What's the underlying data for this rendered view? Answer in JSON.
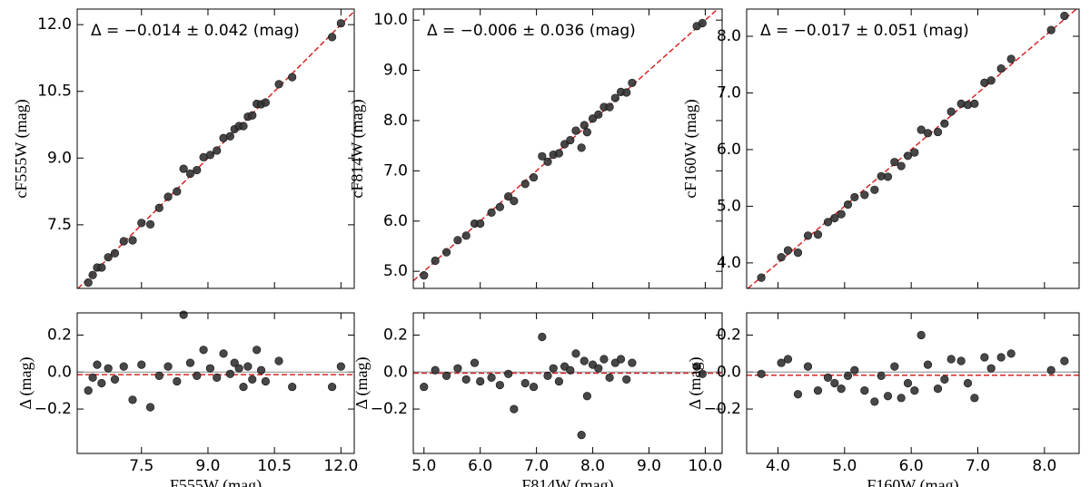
{
  "chart_data": [
    {
      "type": "scatter",
      "y_label": "cF555W (mag)",
      "annotation": "Δ = −0.014 ± 0.042 (mag)",
      "color": "#333333",
      "identity_line": true,
      "x": [
        6.3,
        6.4,
        6.5,
        6.6,
        6.75,
        6.9,
        7.1,
        7.3,
        7.5,
        7.7,
        7.9,
        8.1,
        8.3,
        8.45,
        8.6,
        8.75,
        8.9,
        9.05,
        9.2,
        9.35,
        9.5,
        9.6,
        9.7,
        9.8,
        9.9,
        10.0,
        10.1,
        10.2,
        10.3,
        10.6,
        10.9,
        11.8,
        12.0
      ],
      "y": [
        6.2,
        6.37,
        6.54,
        6.54,
        6.77,
        6.86,
        7.13,
        7.15,
        7.54,
        7.51,
        7.88,
        8.13,
        8.25,
        8.76,
        8.65,
        8.73,
        9.02,
        9.07,
        9.17,
        9.45,
        9.49,
        9.65,
        9.72,
        9.72,
        9.93,
        9.96,
        10.22,
        10.21,
        10.25,
        10.66,
        10.82,
        11.72,
        12.03
      ],
      "xlim": [
        6.05,
        12.3
      ],
      "ylim": [
        6.07,
        12.35
      ],
      "xticks": [
        7.5,
        9,
        10.5,
        12
      ],
      "yticks": [
        {
          "value": 7.5,
          "label": "7.5"
        },
        {
          "value": 9,
          "label": "9.0"
        },
        {
          "value": 10.5,
          "label": "10.5"
        },
        {
          "value": 12,
          "label": "12.0"
        }
      ]
    },
    {
      "type": "scatter",
      "y_label": "cF814W (mag)",
      "annotation": "Δ = −0.006 ± 0.036 (mag)",
      "color": "#333333",
      "identity_line": true,
      "x": [
        5.0,
        5.2,
        5.4,
        5.6,
        5.75,
        5.9,
        6.0,
        6.2,
        6.35,
        6.5,
        6.6,
        6.8,
        6.95,
        7.1,
        7.2,
        7.3,
        7.4,
        7.5,
        7.6,
        7.7,
        7.8,
        7.85,
        7.9,
        8.0,
        8.1,
        8.2,
        8.3,
        8.4,
        8.5,
        8.6,
        8.7,
        9.85,
        9.95
      ],
      "y": [
        4.92,
        5.21,
        5.38,
        5.62,
        5.71,
        5.95,
        5.95,
        6.17,
        6.28,
        6.49,
        6.4,
        6.74,
        6.87,
        7.29,
        7.18,
        7.32,
        7.35,
        7.53,
        7.61,
        7.8,
        7.46,
        7.91,
        7.77,
        8.04,
        8.12,
        8.27,
        8.27,
        8.45,
        8.57,
        8.56,
        8.75,
        9.88,
        9.94
      ],
      "xlim": [
        4.81,
        10.3
      ],
      "ylim": [
        4.66,
        10.22
      ],
      "xticks": [
        5,
        6,
        7,
        8,
        9,
        10
      ],
      "yticks": [
        {
          "value": 5,
          "label": "5.0"
        },
        {
          "value": 6,
          "label": "6.0"
        },
        {
          "value": 7,
          "label": "7.0"
        },
        {
          "value": 8,
          "label": "8.0"
        },
        {
          "value": 9,
          "label": "9.0"
        },
        {
          "value": 10,
          "label": "10.0"
        }
      ]
    },
    {
      "type": "scatter",
      "y_label": "cF160W (mag)",
      "annotation": "Δ = −0.017 ± 0.051 (mag)",
      "color": "#333333",
      "identity_line": true,
      "x": [
        3.75,
        4.05,
        4.15,
        4.3,
        4.45,
        4.6,
        4.75,
        4.85,
        4.95,
        5.05,
        5.15,
        5.3,
        5.45,
        5.55,
        5.65,
        5.75,
        5.85,
        5.95,
        6.05,
        6.15,
        6.25,
        6.4,
        6.5,
        6.6,
        6.75,
        6.85,
        6.95,
        7.1,
        7.2,
        7.35,
        7.5,
        8.1,
        8.3
      ],
      "y": [
        3.74,
        4.1,
        4.22,
        4.18,
        4.48,
        4.5,
        4.72,
        4.79,
        4.86,
        5.03,
        5.16,
        5.2,
        5.29,
        5.53,
        5.52,
        5.78,
        5.71,
        5.89,
        5.95,
        6.35,
        6.29,
        6.31,
        6.46,
        6.67,
        6.81,
        6.79,
        6.81,
        7.18,
        7.22,
        7.43,
        7.6,
        8.11,
        8.36
      ],
      "xlim": [
        3.53,
        8.52
      ],
      "ylim": [
        3.55,
        8.48
      ],
      "xticks": [
        4,
        5,
        6,
        7,
        8
      ],
      "yticks": [
        {
          "value": 4,
          "label": "4.0"
        },
        {
          "value": 5,
          "label": "5.0"
        },
        {
          "value": 6,
          "label": "6.0"
        },
        {
          "value": 7,
          "label": "7.0"
        },
        {
          "value": 8,
          "label": "8.0"
        }
      ]
    },
    {
      "type": "scatter",
      "x_label": "F555W (mag)",
      "y_label": "Δ (mag)",
      "color": "#333333",
      "offset": -0.014,
      "x": [
        6.3,
        6.4,
        6.5,
        6.6,
        6.75,
        6.9,
        7.1,
        7.3,
        7.5,
        7.7,
        7.9,
        8.1,
        8.3,
        8.45,
        8.6,
        8.75,
        8.9,
        9.05,
        9.2,
        9.35,
        9.5,
        9.6,
        9.7,
        9.8,
        9.9,
        10.0,
        10.1,
        10.2,
        10.3,
        10.6,
        10.9,
        11.8,
        12.0
      ],
      "y": [
        -0.1,
        -0.03,
        0.04,
        -0.06,
        0.02,
        -0.04,
        0.03,
        -0.15,
        0.04,
        -0.19,
        -0.02,
        0.03,
        -0.05,
        0.31,
        0.05,
        -0.02,
        0.12,
        0.02,
        -0.03,
        0.1,
        -0.01,
        0.05,
        0.02,
        -0.08,
        0.03,
        -0.04,
        0.12,
        0.01,
        -0.05,
        0.06,
        -0.08,
        -0.08,
        0.03
      ],
      "xlim": [
        6.05,
        12.3
      ],
      "ylim": [
        -0.44,
        0.32
      ],
      "xticks": [
        {
          "value": 7.5,
          "label": "7.5"
        },
        {
          "value": 9,
          "label": "9.0"
        },
        {
          "value": 10.5,
          "label": "10.5"
        },
        {
          "value": 12,
          "label": "12.0"
        }
      ],
      "yticks": [
        {
          "value": -0.2,
          "label": "−0.2"
        },
        {
          "value": 0,
          "label": "0.0"
        },
        0.2
      ]
    },
    {
      "type": "scatter",
      "x_label": "F814W (mag)",
      "y_label": "Δ (mag)",
      "color": "#333333",
      "offset": -0.006,
      "x": [
        5.0,
        5.2,
        5.4,
        5.6,
        5.75,
        5.9,
        6.0,
        6.2,
        6.35,
        6.5,
        6.6,
        6.8,
        6.95,
        7.1,
        7.2,
        7.3,
        7.4,
        7.5,
        7.6,
        7.7,
        7.8,
        7.85,
        7.9,
        8.0,
        8.1,
        8.2,
        8.3,
        8.4,
        8.5,
        8.6,
        8.7,
        9.85,
        9.95
      ],
      "y": [
        -0.08,
        0.01,
        -0.02,
        0.02,
        -0.04,
        0.05,
        -0.05,
        -0.03,
        -0.07,
        -0.01,
        -0.2,
        -0.06,
        -0.08,
        0.19,
        -0.02,
        0.02,
        -0.05,
        0.03,
        0.01,
        0.1,
        -0.34,
        0.06,
        -0.13,
        0.04,
        0.02,
        0.07,
        -0.03,
        0.05,
        0.07,
        -0.04,
        0.05,
        0.03,
        -0.01
      ],
      "xlim": [
        4.81,
        10.3
      ],
      "ylim": [
        -0.44,
        0.32
      ],
      "xticks": [
        {
          "value": 5,
          "label": "5.0"
        },
        {
          "value": 6,
          "label": "6.0"
        },
        {
          "value": 7,
          "label": "7.0"
        },
        {
          "value": 8,
          "label": "8.0"
        },
        {
          "value": 9,
          "label": "9.0"
        },
        {
          "value": 10,
          "label": "10.0"
        }
      ],
      "yticks": [
        {
          "value": -0.2,
          "label": "−0.2"
        },
        {
          "value": 0,
          "label": "0.0"
        },
        0.2
      ]
    },
    {
      "type": "scatter",
      "x_label": "F160W (mag)",
      "y_label": "Δ (mag)",
      "color": "#333333",
      "offset": -0.017,
      "x": [
        3.75,
        4.05,
        4.15,
        4.3,
        4.45,
        4.6,
        4.75,
        4.85,
        4.95,
        5.05,
        5.15,
        5.3,
        5.45,
        5.55,
        5.65,
        5.75,
        5.85,
        5.95,
        6.05,
        6.15,
        6.25,
        6.4,
        6.5,
        6.6,
        6.75,
        6.85,
        6.95,
        7.1,
        7.2,
        7.35,
        7.5,
        8.1,
        8.3
      ],
      "y": [
        -0.01,
        0.05,
        0.07,
        -0.12,
        0.03,
        -0.1,
        -0.03,
        -0.06,
        -0.09,
        -0.02,
        0.01,
        -0.1,
        -0.16,
        -0.02,
        -0.13,
        0.03,
        -0.14,
        -0.06,
        -0.1,
        0.2,
        0.04,
        -0.09,
        -0.04,
        0.07,
        0.06,
        -0.06,
        -0.14,
        0.08,
        0.02,
        0.08,
        0.1,
        0.01,
        0.06
      ],
      "xlim": [
        3.53,
        8.52
      ],
      "ylim": [
        -0.44,
        0.32
      ],
      "xticks": [
        {
          "value": 4,
          "label": "4.0"
        },
        {
          "value": 5,
          "label": "5.0"
        },
        {
          "value": 6,
          "label": "6.0"
        },
        {
          "value": 7,
          "label": "7.0"
        },
        {
          "value": 8,
          "label": "8.0"
        }
      ],
      "yticks": [
        {
          "value": -0.2,
          "label": "−0.2"
        },
        {
          "value": 0,
          "label": "0.0"
        },
        0.2
      ]
    }
  ]
}
